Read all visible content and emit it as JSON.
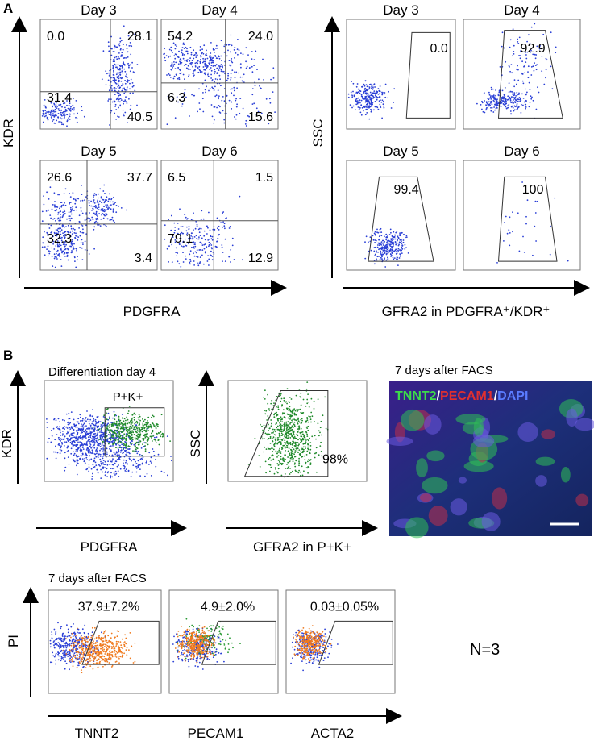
{
  "panel_a": {
    "label": "A",
    "left": {
      "y_label": "KDR",
      "x_label": "PDGFRA",
      "plots": [
        {
          "title": "Day 3",
          "quadrants": [
            "0.0",
            "28.1",
            "31.4",
            "40.5"
          ]
        },
        {
          "title": "Day 4",
          "quadrants": [
            "54.2",
            "24.0",
            "6.3",
            "15.6"
          ]
        },
        {
          "title": "Day 5",
          "quadrants": [
            "26.6",
            "37.7",
            "32.3",
            "3.4"
          ]
        },
        {
          "title": "Day 6",
          "quadrants": [
            "6.5",
            "1.5",
            "79.1",
            "12.9"
          ]
        }
      ]
    },
    "right": {
      "y_label": "SSC",
      "x_label": "GFRA2 in PDGFRA⁺/KDR⁺",
      "plots": [
        {
          "title": "Day 3",
          "gate": "0.0"
        },
        {
          "title": "Day 4",
          "gate": "92.9"
        },
        {
          "title": "Day 5",
          "gate": "99.4"
        },
        {
          "title": "Day 6",
          "gate": "100"
        }
      ]
    }
  },
  "panel_b": {
    "label": "B",
    "sort_plot": {
      "title": "Differentiation day 4",
      "gate": "P+K+",
      "y_label": "KDR",
      "x_label": "PDGFRA"
    },
    "gfra_plot": {
      "gate": "98%",
      "y_label": "SSC",
      "x_label": "GFRA2 in P+K+"
    },
    "image": {
      "title": "7 days after FACS",
      "stains": [
        "TNNT2",
        "/",
        "PECAM1",
        "/",
        "DAPI"
      ]
    },
    "facs": {
      "title": "7 days after FACS",
      "y_label": "PI",
      "n": "N=3",
      "plots": [
        {
          "x_label": "TNNT2",
          "gate": "37.9±7.2%"
        },
        {
          "x_label": "PECAM1",
          "gate": "4.9±2.0%"
        },
        {
          "x_label": "ACTA2",
          "gate": "0.03±0.05%"
        }
      ]
    }
  }
}
